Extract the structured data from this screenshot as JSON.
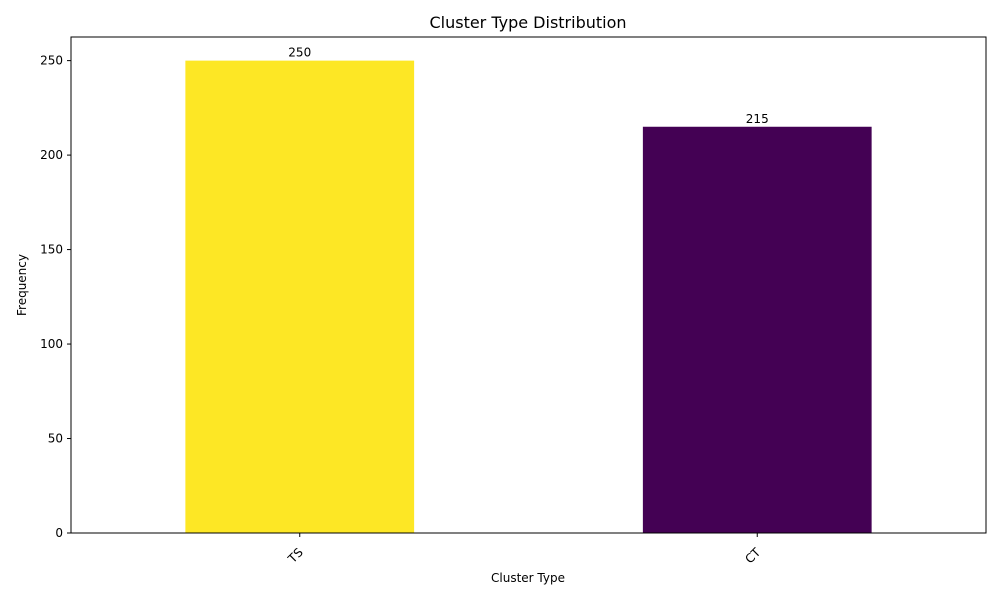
{
  "chart_data": {
    "type": "bar",
    "title": "Cluster Type Distribution",
    "xlabel": "Cluster Type",
    "ylabel": "Frequency",
    "categories": [
      "TS",
      "CT"
    ],
    "values": [
      250,
      215
    ],
    "data_labels": [
      "250",
      "215"
    ],
    "colors": [
      "#fde725",
      "#440154"
    ],
    "ylim": [
      0,
      262.5
    ],
    "yticks": [
      0,
      50,
      100,
      150,
      200,
      250
    ],
    "ytick_labels": [
      "0",
      "50",
      "100",
      "150",
      "200",
      "250"
    ],
    "xtick_rotation": 45,
    "grid": false,
    "legend": "none"
  }
}
